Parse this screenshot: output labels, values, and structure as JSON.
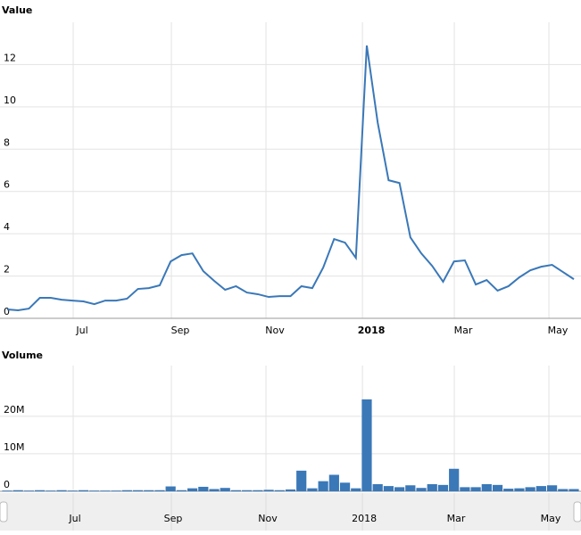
{
  "chart_data": [
    {
      "type": "line",
      "title": "Value",
      "color": "#3a78b8",
      "values": [
        0.42,
        0.38,
        0.46,
        0.97,
        0.97,
        0.88,
        0.84,
        0.8,
        0.67,
        0.84,
        0.84,
        0.93,
        1.39,
        1.43,
        1.56,
        2.69,
        2.99,
        3.07,
        2.23,
        1.77,
        1.35,
        1.52,
        1.22,
        1.14,
        1.01,
        1.05,
        1.05,
        1.52,
        1.43,
        2.4,
        3.75,
        3.58,
        2.86,
        12.9,
        9.26,
        6.53,
        6.4,
        3.83,
        3.07,
        2.48,
        1.73,
        2.69,
        2.74,
        1.6,
        1.81,
        1.31,
        1.52,
        1.94,
        2.27,
        2.44,
        2.53,
        2.19,
        1.85
      ],
      "xlim": [
        0,
        52
      ],
      "xticks": [
        {
          "value": 6.06,
          "label": "Jul"
        },
        {
          "value": 15.07,
          "label": "Sep"
        },
        {
          "value": 23.75,
          "label": "Nov"
        },
        {
          "value": 32.6,
          "label": "2018"
        },
        {
          "value": 41.03,
          "label": "Mar"
        },
        {
          "value": 49.71,
          "label": "May"
        }
      ],
      "ylim": [
        0,
        14
      ],
      "yticks": [
        0,
        2,
        4,
        6,
        8,
        10,
        12
      ],
      "grid": true
    },
    {
      "type": "bar",
      "title": "Volume",
      "color": "#3a78b8",
      "values": [
        200000,
        300000,
        200000,
        300000,
        200000,
        300000,
        200000,
        300000,
        200000,
        200000,
        200000,
        300000,
        300000,
        300000,
        300000,
        1300000,
        300000,
        800000,
        1200000,
        600000,
        900000,
        300000,
        300000,
        300000,
        400000,
        300000,
        500000,
        5500000,
        800000,
        2700000,
        4400000,
        2300000,
        800000,
        24500000,
        1900000,
        1400000,
        1100000,
        1600000,
        900000,
        1900000,
        1700000,
        6000000,
        1100000,
        1100000,
        1900000,
        1700000,
        700000,
        800000,
        1100000,
        1400000,
        1600000,
        600000,
        600000
      ],
      "xlim": [
        0,
        52
      ],
      "xticks": [
        {
          "value": 6.06,
          "label": "Jul"
        },
        {
          "value": 15.07,
          "label": "Sep"
        },
        {
          "value": 23.75,
          "label": "Nov"
        },
        {
          "value": 32.6,
          "label": "2018"
        },
        {
          "value": 41.03,
          "label": "Mar"
        },
        {
          "value": 49.71,
          "label": "May"
        }
      ],
      "ylim": [
        0,
        33500000
      ],
      "yticks": [
        0,
        {
          "value": 10000000,
          "label": "10M"
        },
        {
          "value": 20000000,
          "label": "20M"
        }
      ],
      "grid": true
    }
  ]
}
